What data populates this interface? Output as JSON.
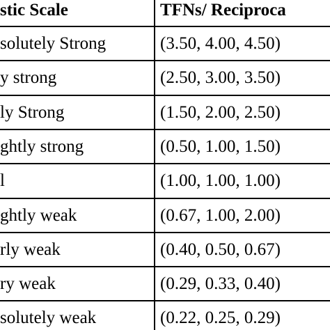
{
  "table": {
    "header": [
      "stic Scale",
      "TFNs/ Reciproca"
    ],
    "rows": [
      [
        "solutely Strong",
        "(3.50, 4.00, 4.50)"
      ],
      [
        "y strong",
        "(2.50, 3.00, 3.50)"
      ],
      [
        "ly Strong",
        "(1.50, 2.00, 2.50)"
      ],
      [
        "ghtly strong",
        "(0.50, 1.00, 1.50)"
      ],
      [
        "l",
        "(1.00, 1.00, 1.00)"
      ],
      [
        "ghtly weak",
        "(0.67, 1.00, 2.00)"
      ],
      [
        "rly weak",
        "(0.40, 0.50, 0.67)"
      ],
      [
        "ry weak",
        "(0.29, 0.33, 0.40)"
      ],
      [
        "solutely weak",
        "(0.22, 0.25, 0.29)"
      ]
    ]
  }
}
